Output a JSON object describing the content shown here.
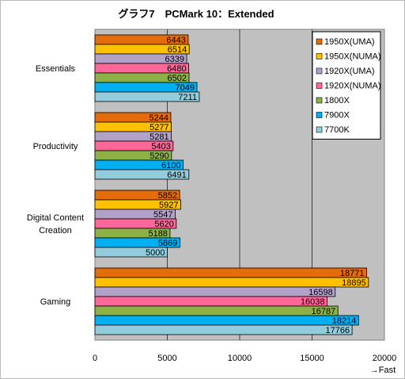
{
  "chart_data": {
    "type": "bar",
    "orientation": "horizontal",
    "title": "グラフ7　PCMark 10：Extended",
    "xlabel": "→Fast",
    "xlim": [
      0,
      20000
    ],
    "x_ticks": [
      0,
      5000,
      10000,
      15000,
      20000
    ],
    "grid": true,
    "legend_position": "right",
    "categories": [
      "Essentials",
      "Productivity",
      "Digital Content Creation",
      "Gaming"
    ],
    "category_lines": [
      [
        "Essentials"
      ],
      [
        "Productivity"
      ],
      [
        "Digital Content",
        "Creation"
      ],
      [
        "Gaming"
      ]
    ],
    "series": [
      {
        "name": "1950X(UMA)",
        "color": "#e46c0a",
        "values": [
          6443,
          5244,
          5852,
          18771
        ]
      },
      {
        "name": "1950X(NUMA)",
        "color": "#ffc000",
        "values": [
          6514,
          5277,
          5927,
          18895
        ]
      },
      {
        "name": "1920X(UMA)",
        "color": "#b3a2c7",
        "values": [
          6339,
          5281,
          5547,
          16598
        ]
      },
      {
        "name": "1920X(NUMA)",
        "color": "#ff6699",
        "values": [
          6480,
          5403,
          5620,
          16038
        ]
      },
      {
        "name": "1800X",
        "color": "#8eb146",
        "values": [
          6502,
          5290,
          5188,
          16787
        ]
      },
      {
        "name": "7900X",
        "color": "#00b0f0",
        "values": [
          7049,
          6100,
          5869,
          18214
        ]
      },
      {
        "name": "7700K",
        "color": "#93cddd",
        "values": [
          7211,
          6491,
          5000,
          17766
        ]
      }
    ]
  }
}
